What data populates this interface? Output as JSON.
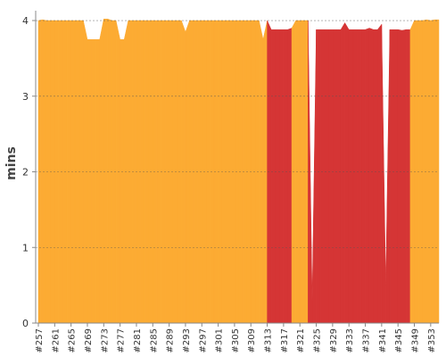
{
  "chart_data": {
    "type": "area",
    "ylabel": "mins",
    "categories": [
      "#257",
      null,
      null,
      null,
      "#261",
      null,
      null,
      null,
      "#265",
      null,
      null,
      null,
      "#269",
      null,
      null,
      null,
      "#273",
      null,
      null,
      null,
      "#277",
      null,
      null,
      null,
      "#281",
      null,
      null,
      null,
      "#285",
      null,
      null,
      null,
      "#289",
      null,
      null,
      null,
      "#293",
      null,
      null,
      null,
      "#297",
      null,
      null,
      null,
      "#301",
      null,
      null,
      null,
      "#305",
      null,
      null,
      null,
      "#309",
      null,
      null,
      null,
      "#313",
      null,
      null,
      null,
      "#317",
      null,
      null,
      null,
      "#321",
      null,
      null,
      null,
      "#325",
      null,
      null,
      null,
      "#329",
      null,
      null,
      null,
      "#333",
      null,
      null,
      null,
      "#337",
      null,
      null,
      null,
      "#341",
      null,
      null,
      null,
      "#345",
      null,
      null,
      null,
      "#349",
      null,
      null,
      null,
      "#353",
      null,
      null
    ],
    "series": [
      {
        "color": "#fcab33",
        "values": [
          4,
          4.01,
          4,
          4,
          4,
          4,
          4,
          4,
          4,
          4,
          4,
          4,
          3.75,
          3.75,
          3.75,
          3.75,
          4.02,
          4.02,
          4,
          4,
          3.75,
          3.75,
          4,
          4,
          4,
          4,
          4,
          4,
          4,
          4,
          4,
          4,
          4,
          4,
          4,
          4,
          3.85,
          4,
          4,
          4,
          4,
          4,
          4,
          4,
          4,
          4,
          4,
          4,
          4,
          4,
          4,
          4,
          4,
          4,
          4,
          3.75,
          4,
          null,
          null,
          null,
          null,
          null,
          null,
          4,
          4,
          4,
          4,
          null,
          null,
          null,
          null,
          null,
          null,
          null,
          null,
          null,
          null,
          null,
          null,
          null,
          null,
          null,
          null,
          null,
          null,
          null,
          null,
          null,
          null,
          null,
          null,
          null,
          4,
          4,
          4,
          4.01,
          4,
          4.01,
          4.01
        ]
      },
      {
        "color": "#d53535",
        "values": [
          null,
          null,
          null,
          null,
          null,
          null,
          null,
          null,
          null,
          null,
          null,
          null,
          null,
          null,
          null,
          null,
          null,
          null,
          null,
          null,
          null,
          null,
          null,
          null,
          null,
          null,
          null,
          null,
          null,
          null,
          null,
          null,
          null,
          null,
          null,
          null,
          null,
          null,
          null,
          null,
          null,
          null,
          null,
          null,
          null,
          null,
          null,
          null,
          null,
          null,
          null,
          null,
          null,
          null,
          null,
          null,
          null,
          3.88,
          3.88,
          3.88,
          3.88,
          3.88,
          3.9,
          null,
          null,
          null,
          null,
          0.3,
          3.88,
          3.88,
          3.88,
          3.88,
          3.88,
          3.88,
          3.88,
          3.97,
          3.88,
          3.88,
          3.88,
          3.88,
          3.88,
          3.9,
          3.88,
          3.88,
          3.95,
          0.5,
          3.88,
          3.88,
          3.88,
          3.87,
          3.88,
          3.88,
          null,
          null,
          null,
          null,
          null,
          null,
          null
        ]
      }
    ],
    "ylim": [
      0,
      4.13
    ],
    "yticks": [
      0,
      1,
      2,
      3,
      4
    ],
    "grid": true
  }
}
